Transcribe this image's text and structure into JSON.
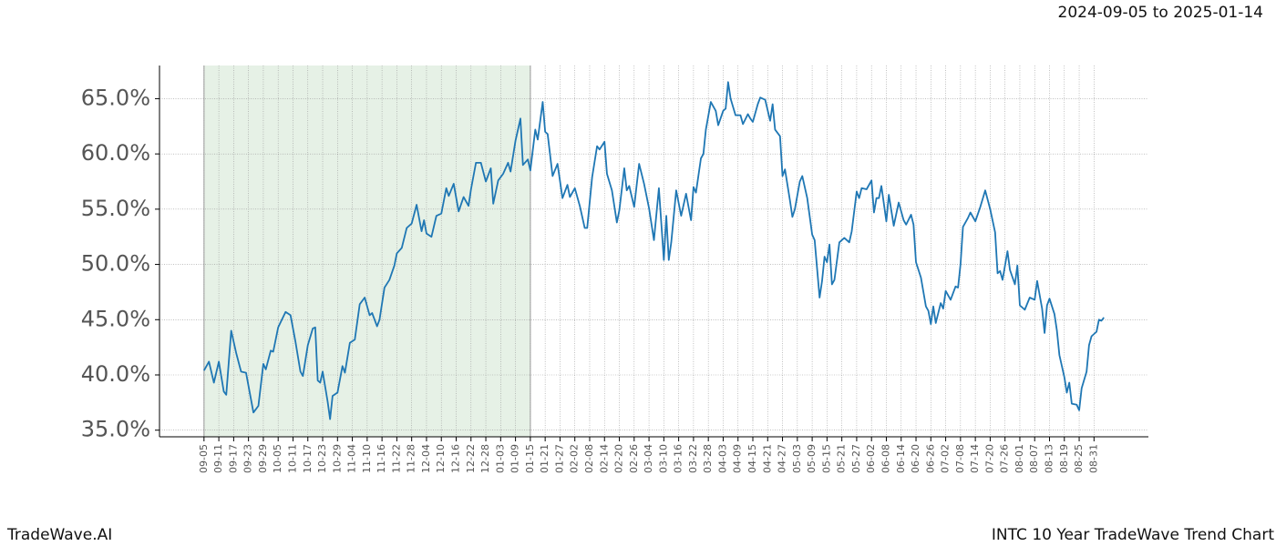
{
  "chart_data": {
    "type": "line",
    "title": "2024-09-05 to 2025-01-14",
    "footer_left": "TradeWave.AI",
    "footer_right": "INTC 10 Year TradeWave Trend Chart",
    "color": "#1f77b4",
    "grid": true,
    "shade": [
      0,
      132
    ],
    "xlim": [
      -18,
      382
    ],
    "ylim": [
      34.4,
      68.0
    ],
    "yticks": [
      {
        "value": 35,
        "label": "35.0%"
      },
      {
        "value": 40,
        "label": "40.0%"
      },
      {
        "value": 45,
        "label": "45.0%"
      },
      {
        "value": 50,
        "label": "50.0%"
      },
      {
        "value": 55,
        "label": "55.0%"
      },
      {
        "value": 60,
        "label": "60.0%"
      },
      {
        "value": 65,
        "label": "65.0%"
      }
    ],
    "xticks": [
      {
        "value": 0,
        "label": "09-05"
      },
      {
        "value": 6,
        "label": "09-11"
      },
      {
        "value": 12,
        "label": "09-17"
      },
      {
        "value": 18,
        "label": "09-23"
      },
      {
        "value": 24,
        "label": "09-29"
      },
      {
        "value": 30,
        "label": "10-05"
      },
      {
        "value": 36,
        "label": "10-11"
      },
      {
        "value": 42,
        "label": "10-17"
      },
      {
        "value": 48,
        "label": "10-23"
      },
      {
        "value": 54,
        "label": "10-29"
      },
      {
        "value": 60,
        "label": "11-04"
      },
      {
        "value": 66,
        "label": "11-10"
      },
      {
        "value": 72,
        "label": "11-16"
      },
      {
        "value": 78,
        "label": "11-22"
      },
      {
        "value": 84,
        "label": "11-28"
      },
      {
        "value": 90,
        "label": "12-04"
      },
      {
        "value": 96,
        "label": "12-10"
      },
      {
        "value": 102,
        "label": "12-16"
      },
      {
        "value": 108,
        "label": "12-22"
      },
      {
        "value": 114,
        "label": "12-28"
      },
      {
        "value": 120,
        "label": "01-03"
      },
      {
        "value": 126,
        "label": "01-09"
      },
      {
        "value": 132,
        "label": "01-15"
      },
      {
        "value": 138,
        "label": "01-21"
      },
      {
        "value": 144,
        "label": "01-27"
      },
      {
        "value": 150,
        "label": "02-02"
      },
      {
        "value": 156,
        "label": "02-08"
      },
      {
        "value": 162,
        "label": "02-14"
      },
      {
        "value": 168,
        "label": "02-20"
      },
      {
        "value": 174,
        "label": "02-26"
      },
      {
        "value": 180,
        "label": "03-04"
      },
      {
        "value": 186,
        "label": "03-10"
      },
      {
        "value": 192,
        "label": "03-16"
      },
      {
        "value": 198,
        "label": "03-22"
      },
      {
        "value": 204,
        "label": "03-28"
      },
      {
        "value": 210,
        "label": "04-03"
      },
      {
        "value": 216,
        "label": "04-09"
      },
      {
        "value": 222,
        "label": "04-15"
      },
      {
        "value": 228,
        "label": "04-21"
      },
      {
        "value": 234,
        "label": "04-27"
      },
      {
        "value": 240,
        "label": "05-03"
      },
      {
        "value": 246,
        "label": "05-09"
      },
      {
        "value": 252,
        "label": "05-15"
      },
      {
        "value": 258,
        "label": "05-21"
      },
      {
        "value": 264,
        "label": "05-27"
      },
      {
        "value": 270,
        "label": "06-02"
      },
      {
        "value": 276,
        "label": "06-08"
      },
      {
        "value": 282,
        "label": "06-14"
      },
      {
        "value": 288,
        "label": "06-20"
      },
      {
        "value": 294,
        "label": "06-26"
      },
      {
        "value": 300,
        "label": "07-02"
      },
      {
        "value": 306,
        "label": "07-08"
      },
      {
        "value": 312,
        "label": "07-14"
      },
      {
        "value": 318,
        "label": "07-20"
      },
      {
        "value": 324,
        "label": "07-26"
      },
      {
        "value": 330,
        "label": "08-01"
      },
      {
        "value": 336,
        "label": "08-07"
      },
      {
        "value": 342,
        "label": "08-13"
      },
      {
        "value": 348,
        "label": "08-19"
      },
      {
        "value": 354,
        "label": "08-25"
      },
      {
        "value": 360,
        "label": "08-31"
      }
    ],
    "x": [
      0,
      2,
      4,
      6,
      8,
      9,
      11,
      13,
      15,
      17,
      20,
      22,
      24,
      25,
      27,
      28,
      30,
      33,
      35,
      37,
      39,
      40,
      42,
      44,
      45,
      46,
      47,
      48,
      50,
      51,
      52,
      54,
      56,
      57,
      59,
      61,
      63,
      65,
      67,
      68,
      70,
      71,
      73,
      75,
      77,
      78,
      80,
      82,
      84,
      86,
      88,
      89,
      90,
      92,
      94,
      96,
      98,
      99,
      101,
      103,
      105,
      107,
      108,
      110,
      112,
      114,
      116,
      117,
      119,
      121,
      123,
      124,
      126,
      128,
      129,
      131,
      132,
      134,
      135,
      137,
      138,
      139,
      141,
      143,
      145,
      147,
      148,
      150,
      152,
      154,
      155,
      157,
      159,
      160,
      162,
      163,
      165,
      167,
      168,
      170,
      171,
      172,
      174,
      176,
      178,
      180,
      182,
      184,
      186,
      187,
      188,
      189,
      191,
      193,
      195,
      197,
      198,
      199,
      201,
      202,
      203,
      205,
      207,
      208,
      210,
      211,
      212,
      213,
      215,
      217,
      218,
      220,
      221,
      222,
      224,
      225,
      227,
      229,
      230,
      231,
      233,
      234,
      235,
      237,
      238,
      239,
      241,
      242,
      244,
      246,
      247,
      249,
      250,
      251,
      252,
      253,
      254,
      255,
      257,
      259,
      261,
      262,
      264,
      265,
      266,
      268,
      270,
      271,
      272,
      273,
      274,
      276,
      277,
      279,
      281,
      283,
      284,
      286,
      287,
      288,
      290,
      292,
      293,
      294,
      295,
      296,
      298,
      299,
      300,
      302,
      304,
      305,
      306,
      307,
      309,
      310,
      312,
      314,
      316,
      318,
      320,
      321,
      322,
      323,
      325,
      326,
      328,
      329,
      330,
      332,
      334,
      336,
      337,
      339,
      340,
      341,
      342,
      344,
      345,
      346,
      348,
      349,
      350,
      351,
      353,
      354,
      355,
      357,
      358,
      359,
      361,
      362,
      363,
      364
    ],
    "values": [
      40.4,
      41.2,
      39.3,
      41.2,
      38.5,
      38.2,
      44.0,
      42.0,
      40.3,
      40.2,
      36.6,
      37.2,
      41.0,
      40.5,
      42.2,
      42.1,
      44.3,
      45.7,
      45.4,
      43.0,
      40.3,
      39.9,
      42.7,
      44.2,
      44.3,
      39.5,
      39.3,
      40.3,
      37.6,
      36.0,
      38.1,
      38.4,
      40.8,
      40.2,
      42.9,
      43.2,
      46.4,
      47.0,
      45.4,
      45.6,
      44.4,
      45.0,
      47.9,
      48.6,
      49.9,
      51.0,
      51.5,
      53.3,
      53.7,
      55.4,
      53.0,
      54.0,
      52.8,
      52.5,
      54.4,
      54.6,
      56.9,
      56.2,
      57.3,
      54.8,
      56.1,
      55.3,
      56.8,
      59.2,
      59.2,
      57.5,
      58.7,
      55.5,
      57.6,
      58.2,
      59.2,
      58.4,
      61.2,
      63.2,
      59.0,
      59.5,
      58.5,
      62.2,
      61.3,
      64.7,
      62.0,
      61.8,
      58.0,
      59.1,
      56.0,
      57.2,
      56.1,
      56.9,
      55.3,
      53.3,
      53.3,
      57.9,
      60.7,
      60.4,
      61.1,
      58.2,
      56.7,
      53.8,
      54.9,
      58.7,
      56.7,
      57.1,
      55.2,
      59.1,
      57.3,
      55.1,
      52.2,
      56.9,
      50.4,
      54.4,
      50.4,
      52.0,
      56.7,
      54.4,
      56.4,
      54.0,
      57.0,
      56.5,
      59.6,
      60.0,
      62.2,
      64.7,
      63.9,
      62.6,
      63.9,
      64.1,
      66.5,
      65.0,
      63.5,
      63.5,
      62.7,
      63.6,
      63.2,
      62.9,
      64.5,
      65.1,
      64.9,
      63.0,
      64.5,
      62.2,
      61.6,
      58.0,
      58.6,
      55.8,
      54.3,
      55.0,
      57.5,
      58.0,
      56.0,
      52.7,
      52.2,
      47.0,
      48.5,
      50.7,
      50.2,
      51.8,
      48.2,
      48.6,
      52.0,
      52.4,
      52.0,
      53.0,
      56.6,
      56.0,
      56.9,
      56.8,
      57.6,
      54.7,
      56.0,
      56.0,
      57.1,
      53.9,
      56.3,
      53.5,
      55.6,
      54.0,
      53.6,
      54.5,
      53.6,
      50.2,
      48.8,
      46.2,
      45.8,
      44.6,
      46.2,
      44.7,
      46.5,
      46.0,
      47.6,
      46.8,
      48.0,
      47.9,
      50.0,
      53.4,
      54.2,
      54.7,
      53.9,
      55.2,
      56.7,
      55.0,
      52.9,
      49.2,
      49.4,
      48.6,
      51.2,
      49.5,
      48.2,
      49.9,
      46.3,
      45.9,
      47.0,
      46.8,
      48.5,
      46.0,
      43.8,
      46.3,
      46.9,
      45.5,
      44.0,
      41.8,
      39.8,
      38.4,
      39.3,
      37.4,
      37.3,
      36.8,
      38.8,
      40.3,
      42.7,
      43.5,
      43.9,
      45.0,
      44.9,
      45.2
    ]
  }
}
